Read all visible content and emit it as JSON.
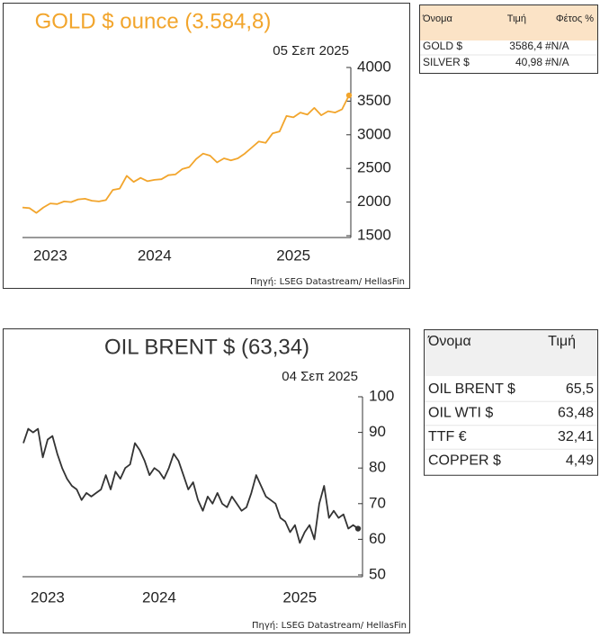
{
  "chart_data": [
    {
      "type": "line",
      "title": "GOLD $ ounce (3.584,8)",
      "title_color": "#f2a52c",
      "subtitle": "05 Σεπ 2025",
      "source": "Πηγή: LSEG Datastream/ HellasFin",
      "categories": [
        null,
        null,
        null,
        null,
        "2023",
        null,
        null,
        null,
        null,
        null,
        null,
        null,
        null,
        null,
        null,
        null,
        null,
        null,
        null,
        "2024",
        null,
        null,
        null,
        null,
        null,
        null,
        null,
        null,
        null,
        null,
        null,
        null,
        null,
        null,
        null,
        null,
        null,
        null,
        null,
        "2025",
        null,
        null,
        null,
        null,
        null,
        null,
        null,
        null
      ],
      "series": [
        {
          "name": "GOLD $",
          "color": "#f2a52c",
          "values": [
            1920,
            1910,
            1840,
            1920,
            1980,
            1970,
            2010,
            2000,
            2040,
            2050,
            2020,
            2010,
            2030,
            2180,
            2200,
            2390,
            2300,
            2360,
            2310,
            2330,
            2340,
            2400,
            2410,
            2490,
            2520,
            2640,
            2720,
            2690,
            2590,
            2650,
            2620,
            2650,
            2720,
            2810,
            2900,
            2880,
            3020,
            3050,
            3280,
            3260,
            3330,
            3300,
            3400,
            3290,
            3350,
            3330,
            3380,
            3585
          ]
        }
      ],
      "last_point_marker": true,
      "ylim": [
        1500,
        4000
      ],
      "yticks": [
        1500,
        2000,
        2500,
        3000,
        3500,
        4000
      ],
      "grid": false
    },
    {
      "type": "line",
      "title": "OIL BRENT $ (63,34)",
      "title_color": "#333333",
      "subtitle": "04 Σεπ 2025",
      "source": "Πηγή: LSEG Datastream/ HellasFin",
      "categories": [
        null,
        null,
        null,
        null,
        null,
        "2023",
        null,
        null,
        null,
        null,
        null,
        null,
        null,
        null,
        null,
        null,
        null,
        null,
        null,
        null,
        null,
        null,
        null,
        null,
        null,
        null,
        null,
        null,
        "2024",
        null,
        null,
        null,
        null,
        null,
        null,
        null,
        null,
        null,
        null,
        null,
        null,
        null,
        null,
        null,
        null,
        null,
        null,
        null,
        null,
        null,
        null,
        null,
        null,
        null,
        null,
        null,
        null,
        "2025",
        null,
        null,
        null,
        null,
        null,
        null,
        null,
        null,
        null,
        null,
        null,
        null
      ],
      "series": [
        {
          "name": "OIL BRENT $",
          "color": "#333333",
          "values": [
            87,
            91,
            90,
            91,
            83,
            88,
            89,
            84,
            80,
            77,
            75,
            74,
            71,
            73,
            72,
            73,
            74,
            78,
            74,
            79,
            77,
            80,
            81,
            87,
            85,
            82,
            78,
            80,
            79,
            77,
            80,
            84,
            82,
            78,
            74,
            76,
            71,
            68,
            72,
            70,
            73,
            70,
            69,
            72,
            70,
            68,
            69,
            73,
            78,
            75,
            72,
            71,
            70,
            66,
            65,
            62,
            64,
            59,
            62,
            64,
            60,
            70,
            75,
            66,
            68,
            66,
            67,
            63,
            64,
            63
          ]
        }
      ],
      "last_point_marker": true,
      "ylim": [
        50,
        100
      ],
      "yticks": [
        50,
        60,
        70,
        80,
        90,
        100
      ],
      "grid": false
    }
  ],
  "tables": [
    {
      "header_color": "#fbe3c6",
      "header": [
        "Όνομα",
        "Τιμή",
        "Φέτος %"
      ],
      "rows": [
        [
          "GOLD $",
          "3586,4",
          "#N/A"
        ],
        [
          "SILVER $",
          "40,98",
          "#N/A"
        ]
      ]
    },
    {
      "header_color": "#f0f0f0",
      "header": [
        "Όνομα",
        "Τιμή"
      ],
      "rows": [
        [
          "OIL BRENT $",
          "65,5"
        ],
        [
          "OIL WTI $",
          "63,48"
        ],
        [
          "TTF €",
          "32,41"
        ],
        [
          "COPPER $",
          "4,49"
        ]
      ]
    }
  ]
}
